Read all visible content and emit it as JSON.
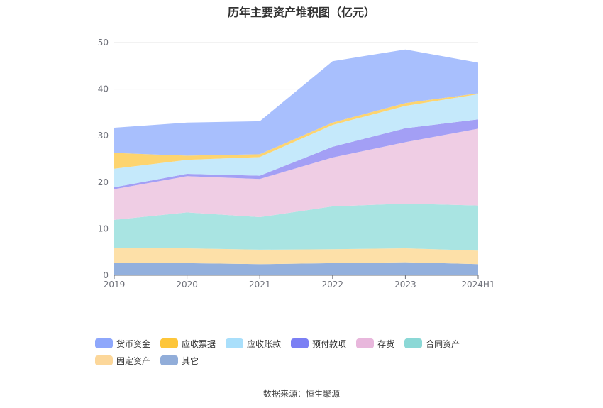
{
  "chart_data": {
    "type": "area",
    "stacked": true,
    "title": "历年主要资产堆积图（亿元）",
    "categories": [
      "2019",
      "2020",
      "2021",
      "2022",
      "2023",
      "2024H1"
    ],
    "ylim": [
      0,
      50
    ],
    "yticks": [
      "0",
      "10",
      "20",
      "30",
      "40",
      "50"
    ],
    "grid": true,
    "legend_position": "bottom",
    "series": [
      {
        "name": "其它",
        "color": "#93b0dd",
        "values": [
          2.7,
          2.6,
          2.4,
          2.6,
          2.8,
          2.4
        ]
      },
      {
        "name": "固定资产",
        "color": "#fde0a8",
        "values": [
          3.2,
          3.2,
          3.1,
          3.0,
          3.0,
          2.9
        ]
      },
      {
        "name": "合同资产",
        "color": "#a9e4e2",
        "values": [
          6.0,
          7.7,
          7.0,
          9.2,
          9.6,
          9.7
        ]
      },
      {
        "name": "存货",
        "color": "#efcde4",
        "values": [
          6.6,
          7.8,
          8.2,
          10.5,
          13.2,
          16.5
        ]
      },
      {
        "name": "预付款项",
        "color": "#a39ff5",
        "values": [
          0.4,
          0.5,
          0.7,
          2.3,
          3.0,
          2.0
        ]
      },
      {
        "name": "应收账款",
        "color": "#c5e9fb",
        "values": [
          4.0,
          3.0,
          4.0,
          4.7,
          4.8,
          5.4
        ]
      },
      {
        "name": "应收票据",
        "color": "#fdd46f",
        "values": [
          3.4,
          0.9,
          0.6,
          0.5,
          0.6,
          0.2
        ]
      },
      {
        "name": "货币资金",
        "color": "#a8bffd",
        "values": [
          5.4,
          7.1,
          7.1,
          13.2,
          11.5,
          6.6
        ]
      }
    ],
    "legend": [
      {
        "name": "货币资金",
        "color": "#8ea7fb"
      },
      {
        "name": "应收票据",
        "color": "#fdc63a"
      },
      {
        "name": "应收账款",
        "color": "#a9dffb"
      },
      {
        "name": "预付款项",
        "color": "#7b7ff4"
      },
      {
        "name": "存货",
        "color": "#e8b7dc"
      },
      {
        "name": "合同资产",
        "color": "#8bd8d6"
      },
      {
        "name": "固定资产",
        "color": "#fcd79a"
      },
      {
        "name": "其它",
        "color": "#91add9"
      }
    ]
  },
  "source": "数据来源：恒生聚源"
}
